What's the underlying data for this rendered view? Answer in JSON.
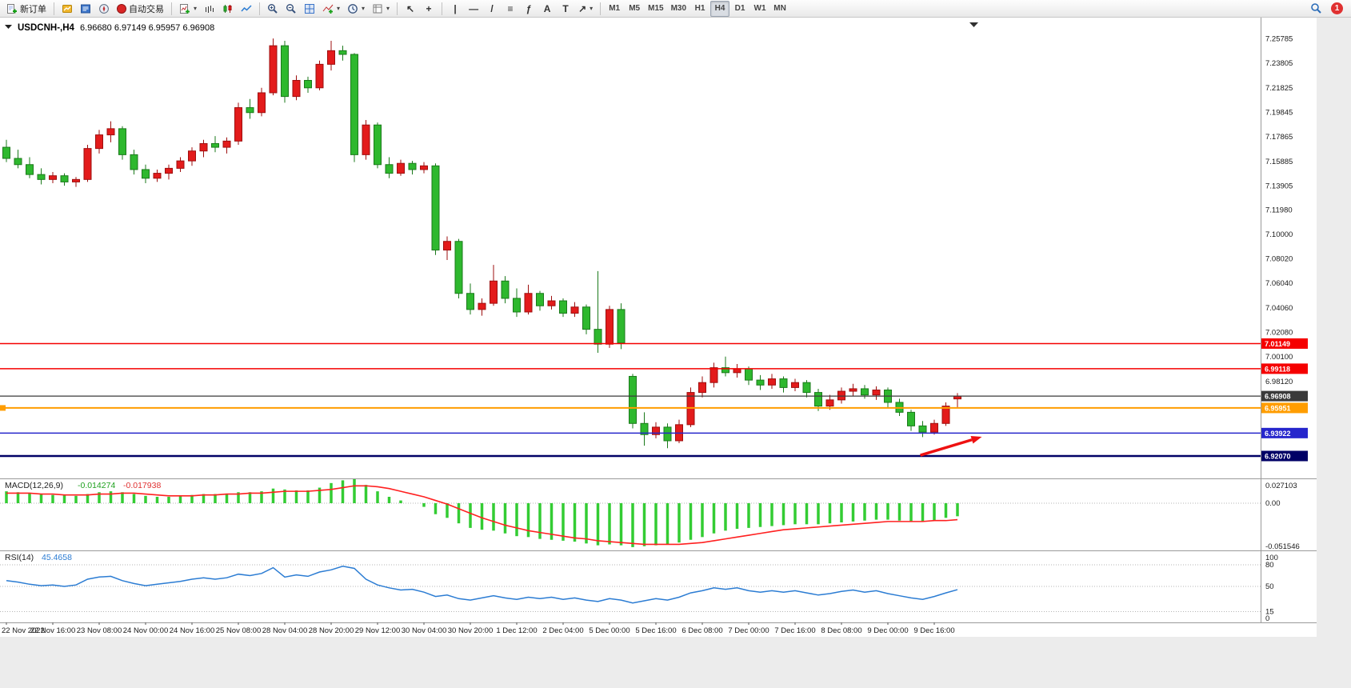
{
  "toolbar": {
    "new_order_label": "新订单",
    "autotrading_label": "自动交易",
    "timeframes": [
      "M1",
      "M5",
      "M15",
      "M30",
      "H1",
      "H4",
      "D1",
      "W1",
      "MN"
    ],
    "active_timeframe": "H4",
    "notification_badge": "1",
    "tool_glyphs": {
      "cursor": "↖",
      "crosshair": "+",
      "vline": "|",
      "hline": "—",
      "trendline": "/",
      "channel": "≡",
      "fibo": "ƒ",
      "text": "A",
      "textlabel": "T",
      "arrows": "↗",
      "caret": "▾"
    }
  },
  "chart_header": {
    "symbol_title": "USDCNH-,H4",
    "ohlc": "6.96680 6.97149 6.95957 6.96908"
  },
  "colors": {
    "bull": "#e31b1b",
    "bull_stroke": "#9e0f0f",
    "bear": "#2eb82e",
    "bear_stroke": "#1b7a1b",
    "macd_histogram": "#33cc33",
    "macd_signal": "#ff2020",
    "rsi_line": "#2b7cd3",
    "separator": "#9a9a9a",
    "chrome_bg": "#ececec"
  },
  "chart_data": {
    "type": "candlestick",
    "symbol": "USDCNH-",
    "period": "H4",
    "ohlc_current": {
      "open": "6.96680",
      "high": "6.97149",
      "low": "6.95957",
      "close": "6.96908"
    },
    "bar_spacing": 14.5,
    "label_every": 4,
    "candles": [
      [
        7.17,
        7.176,
        7.158,
        7.161
      ],
      [
        7.161,
        7.168,
        7.153,
        7.156
      ],
      [
        7.156,
        7.162,
        7.145,
        7.148
      ],
      [
        7.148,
        7.153,
        7.14,
        7.144
      ],
      [
        7.144,
        7.15,
        7.141,
        7.147
      ],
      [
        7.147,
        7.149,
        7.139,
        7.142
      ],
      [
        7.142,
        7.146,
        7.138,
        7.144
      ],
      [
        7.144,
        7.172,
        7.142,
        7.169
      ],
      [
        7.169,
        7.184,
        7.165,
        7.18
      ],
      [
        7.18,
        7.191,
        7.174,
        7.185
      ],
      [
        7.185,
        7.187,
        7.16,
        7.164
      ],
      [
        7.164,
        7.168,
        7.148,
        7.152
      ],
      [
        7.152,
        7.156,
        7.141,
        7.145
      ],
      [
        7.145,
        7.152,
        7.142,
        7.149
      ],
      [
        7.149,
        7.156,
        7.144,
        7.153
      ],
      [
        7.153,
        7.162,
        7.15,
        7.159
      ],
      [
        7.159,
        7.17,
        7.155,
        7.167
      ],
      [
        7.167,
        7.176,
        7.162,
        7.173
      ],
      [
        7.173,
        7.179,
        7.166,
        7.17
      ],
      [
        7.17,
        7.178,
        7.165,
        7.175
      ],
      [
        7.175,
        7.206,
        7.172,
        7.202
      ],
      [
        7.202,
        7.209,
        7.193,
        7.198
      ],
      [
        7.198,
        7.218,
        7.195,
        7.214
      ],
      [
        7.214,
        7.2578,
        7.212,
        7.252
      ],
      [
        7.252,
        7.256,
        7.206,
        7.211
      ],
      [
        7.211,
        7.228,
        7.208,
        7.224
      ],
      [
        7.224,
        7.227,
        7.214,
        7.218
      ],
      [
        7.218,
        7.24,
        7.216,
        7.237
      ],
      [
        7.237,
        7.256,
        7.232,
        7.248
      ],
      [
        7.248,
        7.252,
        7.24,
        7.245
      ],
      [
        7.245,
        7.246,
        7.158,
        7.164
      ],
      [
        7.164,
        7.192,
        7.16,
        7.188
      ],
      [
        7.188,
        7.19,
        7.153,
        7.156
      ],
      [
        7.156,
        7.162,
        7.145,
        7.149
      ],
      [
        7.149,
        7.16,
        7.147,
        7.157
      ],
      [
        7.157,
        7.159,
        7.148,
        7.152
      ],
      [
        7.152,
        7.158,
        7.149,
        7.155
      ],
      [
        7.155,
        7.157,
        7.083,
        7.087
      ],
      [
        7.087,
        7.098,
        7.079,
        7.094
      ],
      [
        7.094,
        7.096,
        7.048,
        7.052
      ],
      [
        7.052,
        7.06,
        7.035,
        7.039
      ],
      [
        7.039,
        7.048,
        7.034,
        7.044
      ],
      [
        7.044,
        7.075,
        7.042,
        7.062
      ],
      [
        7.062,
        7.066,
        7.044,
        7.048
      ],
      [
        7.048,
        7.056,
        7.033,
        7.037
      ],
      [
        7.037,
        7.059,
        7.035,
        7.052
      ],
      [
        7.052,
        7.054,
        7.038,
        7.042
      ],
      [
        7.042,
        7.05,
        7.039,
        7.046
      ],
      [
        7.046,
        7.048,
        7.033,
        7.036
      ],
      [
        7.036,
        7.045,
        7.033,
        7.041
      ],
      [
        7.041,
        7.043,
        7.019,
        7.023
      ],
      [
        7.023,
        7.07,
        7.004,
        7.011
      ],
      [
        7.011,
        7.042,
        7.008,
        7.039
      ],
      [
        7.039,
        7.044,
        7.007,
        7.012
      ],
      [
        6.985,
        6.987,
        6.943,
        6.947
      ],
      [
        6.947,
        6.956,
        6.929,
        6.938
      ],
      [
        6.938,
        6.948,
        6.935,
        6.944
      ],
      [
        6.944,
        6.947,
        6.927,
        6.933
      ],
      [
        6.933,
        6.95,
        6.931,
        6.946
      ],
      [
        6.946,
        6.976,
        6.944,
        6.972
      ],
      [
        6.972,
        6.985,
        6.968,
        6.98
      ],
      [
        6.98,
        6.996,
        6.976,
        6.992
      ],
      [
        6.992,
        7.001,
        6.985,
        6.988
      ],
      [
        6.988,
        6.995,
        6.984,
        6.991
      ],
      [
        6.991,
        6.993,
        6.978,
        6.982
      ],
      [
        6.982,
        6.986,
        6.974,
        6.978
      ],
      [
        6.978,
        6.987,
        6.975,
        6.983
      ],
      [
        6.983,
        6.985,
        6.972,
        6.976
      ],
      [
        6.976,
        6.983,
        6.973,
        6.98
      ],
      [
        6.98,
        6.982,
        6.968,
        6.972
      ],
      [
        6.972,
        6.975,
        6.957,
        6.961
      ],
      [
        6.961,
        6.97,
        6.958,
        6.966
      ],
      [
        6.966,
        6.976,
        6.963,
        6.973
      ],
      [
        6.973,
        6.979,
        6.969,
        6.975
      ],
      [
        6.975,
        6.978,
        6.967,
        6.97
      ],
      [
        6.97,
        6.977,
        6.966,
        6.974
      ],
      [
        6.974,
        6.976,
        6.96,
        6.964
      ],
      [
        6.964,
        6.967,
        6.953,
        6.956
      ],
      [
        6.956,
        6.958,
        6.941,
        6.945
      ],
      [
        6.945,
        6.949,
        6.936,
        6.94
      ],
      [
        6.94,
        6.95,
        6.938,
        6.947
      ],
      [
        6.947,
        6.964,
        6.945,
        6.961
      ],
      [
        6.9668,
        6.9715,
        6.9596,
        6.9691
      ]
    ],
    "time_labels": [
      "22 Nov 2022",
      "22 Nov 16:00",
      "23 Nov 08:00",
      "24 Nov 00:00",
      "24 Nov 16:00",
      "25 Nov 08:00",
      "28 Nov 04:00",
      "28 Nov 20:00",
      "29 Nov 12:00",
      "30 Nov 04:00",
      "30 Nov 20:00",
      "1 Dec 12:00",
      "2 Dec 04:00",
      "5 Dec 00:00",
      "5 Dec 16:00",
      "6 Dec 08:00",
      "7 Dec 00:00",
      "7 Dec 16:00",
      "8 Dec 08:00",
      "9 Dec 00:00",
      "9 Dec 16:00"
    ],
    "price_axis": [
      "7.25785",
      "7.23805",
      "7.21825",
      "7.19845",
      "7.17865",
      "7.15885",
      "7.13905",
      "7.11980",
      "7.10000",
      "7.08020",
      "7.06040",
      "7.04060",
      "7.02080",
      "7.00100",
      "6.98120"
    ],
    "hlines": [
      {
        "price": 7.01149,
        "label": "7.01149",
        "color": "#f50000",
        "width": 1.5
      },
      {
        "price": 6.99118,
        "label": "6.99118",
        "color": "#f50000",
        "width": 1.5
      },
      {
        "price": 6.96908,
        "label": "6.96908",
        "color": "#3a3a3a",
        "width": 1.2,
        "role": "current-price"
      },
      {
        "price": 6.95951,
        "label": "6.95951",
        "color": "#ff9d00",
        "width": 2,
        "handle": true
      },
      {
        "price": 6.93922,
        "label": "6.93922",
        "color": "#2626cc",
        "width": 1.5
      },
      {
        "price": 6.9207,
        "label": "6.92070",
        "color": "#000066",
        "width": 2.5
      }
    ],
    "arrow": {
      "from_bar": 78.8,
      "from_price": 6.9213,
      "to_bar": 84.1,
      "to_price": 6.9362,
      "color": "#ee1111"
    },
    "macd": {
      "label": "MACD(12,26,9)",
      "value": "-0.014274",
      "signal_value": "-0.017938",
      "scale": [
        {
          "t": "0.027103",
          "v": 0.027103
        },
        {
          "t": "0.00",
          "v": 0
        },
        {
          "t": "-0.051546",
          "v": -0.051546
        }
      ],
      "histogram": [
        0.013,
        0.012,
        0.011,
        0.01,
        0.009,
        0.009,
        0.008,
        0.01,
        0.012,
        0.013,
        0.012,
        0.01,
        0.008,
        0.007,
        0.007,
        0.008,
        0.009,
        0.01,
        0.01,
        0.01,
        0.012,
        0.012,
        0.013,
        0.016,
        0.015,
        0.014,
        0.014,
        0.017,
        0.022,
        0.025,
        0.027,
        0.02,
        0.013,
        0.007,
        0.003,
        0.0,
        -0.004,
        -0.012,
        -0.016,
        -0.022,
        -0.027,
        -0.029,
        -0.03,
        -0.033,
        -0.036,
        -0.037,
        -0.039,
        -0.04,
        -0.041,
        -0.042,
        -0.044,
        -0.046,
        -0.045,
        -0.046,
        -0.048,
        -0.047,
        -0.046,
        -0.045,
        -0.043,
        -0.04,
        -0.037,
        -0.033,
        -0.03,
        -0.028,
        -0.027,
        -0.026,
        -0.025,
        -0.024,
        -0.023,
        -0.023,
        -0.023,
        -0.022,
        -0.021,
        -0.02,
        -0.019,
        -0.018,
        -0.018,
        -0.019,
        -0.02,
        -0.02,
        -0.019,
        -0.016,
        -0.014274
      ],
      "signal": [
        0.011,
        0.011,
        0.011,
        0.01,
        0.01,
        0.009,
        0.009,
        0.009,
        0.01,
        0.01,
        0.011,
        0.011,
        0.01,
        0.009,
        0.008,
        0.008,
        0.008,
        0.009,
        0.009,
        0.01,
        0.01,
        0.011,
        0.011,
        0.012,
        0.013,
        0.013,
        0.013,
        0.014,
        0.015,
        0.017,
        0.019,
        0.019,
        0.018,
        0.016,
        0.013,
        0.01,
        0.007,
        0.003,
        -0.001,
        -0.006,
        -0.011,
        -0.016,
        -0.02,
        -0.024,
        -0.027,
        -0.03,
        -0.032,
        -0.034,
        -0.036,
        -0.038,
        -0.039,
        -0.041,
        -0.042,
        -0.043,
        -0.044,
        -0.045,
        -0.045,
        -0.045,
        -0.045,
        -0.044,
        -0.043,
        -0.041,
        -0.039,
        -0.037,
        -0.035,
        -0.033,
        -0.031,
        -0.029,
        -0.028,
        -0.027,
        -0.026,
        -0.025,
        -0.024,
        -0.023,
        -0.022,
        -0.021,
        -0.02,
        -0.02,
        -0.02,
        -0.02,
        -0.019,
        -0.019,
        -0.017938
      ]
    },
    "rsi": {
      "label": "RSI(14)",
      "value": "45.4658",
      "levels": [
        80,
        50,
        15
      ],
      "scale": [
        {
          "t": "100",
          "v": 100
        },
        {
          "t": "80",
          "v": 80
        },
        {
          "t": "50",
          "v": 50
        },
        {
          "t": "15",
          "v": 15
        },
        {
          "t": "0",
          "v": 0
        }
      ],
      "values": [
        58,
        56,
        53,
        51,
        52,
        50,
        52,
        60,
        63,
        64,
        58,
        54,
        51,
        53,
        55,
        57,
        60,
        62,
        60,
        62,
        67,
        65,
        68,
        76,
        63,
        66,
        64,
        70,
        73,
        78,
        75,
        60,
        52,
        48,
        45,
        46,
        42,
        36,
        38,
        33,
        31,
        34,
        37,
        34,
        32,
        35,
        33,
        35,
        32,
        34,
        31,
        29,
        33,
        31,
        27,
        30,
        33,
        31,
        35,
        41,
        44,
        48,
        46,
        48,
        44,
        42,
        44,
        42,
        44,
        41,
        38,
        40,
        43,
        45,
        42,
        44,
        40,
        37,
        34,
        32,
        36,
        41,
        45.4658
      ]
    }
  }
}
